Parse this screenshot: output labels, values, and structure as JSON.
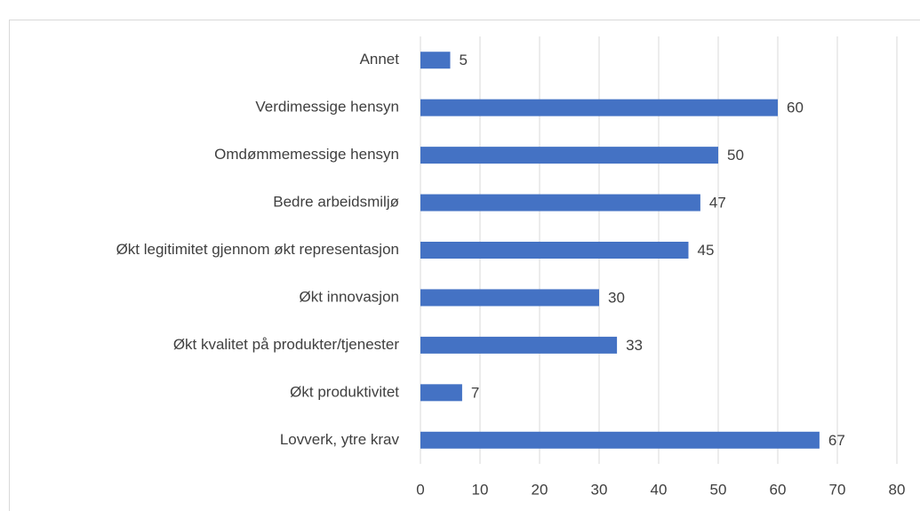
{
  "chart_data": {
    "type": "bar",
    "orientation": "horizontal",
    "categories": [
      "Annet",
      "Verdimessige hensyn",
      "Omdømmemessige hensyn",
      "Bedre arbeidsmiljø",
      "Økt legitimitet gjennom økt representasjon",
      "Økt innovasjon",
      "Økt kvalitet på produkter/tjenester",
      "Økt produktivitet",
      "Lovverk, ytre krav"
    ],
    "values": [
      5,
      60,
      50,
      47,
      45,
      30,
      33,
      7,
      67
    ],
    "color": "#4472c4",
    "xlim": [
      0,
      80
    ],
    "xticks": [
      0,
      10,
      20,
      30,
      40,
      50,
      60,
      70,
      80
    ],
    "grid": true
  }
}
